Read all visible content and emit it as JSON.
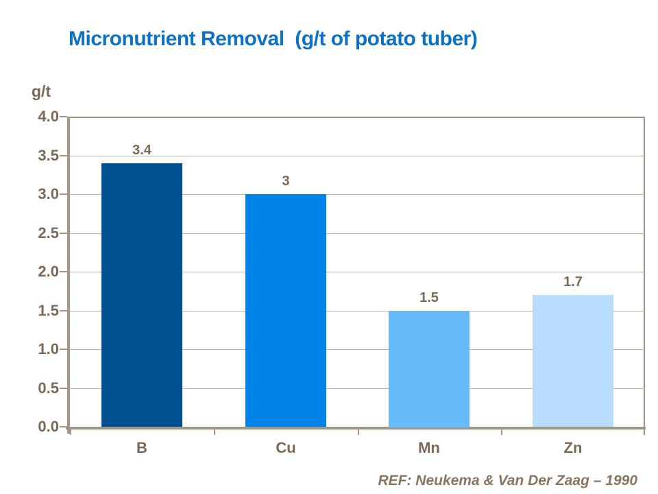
{
  "title": "Micronutrient Removal  (g/t of potato tuber)",
  "footer": {
    "reference": "REF: Neukema & Van Der Zaag – 1990"
  },
  "chart_data": {
    "type": "bar",
    "title": "Micronutrient Removal (g/t of potato tuber)",
    "unit_label": "g/t",
    "categories": [
      "B",
      "Cu",
      "Mn",
      "Zn"
    ],
    "values": [
      3.4,
      3,
      1.5,
      1.7
    ],
    "value_labels": [
      "3.4",
      "3",
      "1.5",
      "1.7"
    ],
    "bar_colors": [
      "#005091",
      "#0083E6",
      "#66BBFA",
      "#B8DCFB"
    ],
    "xlabel": "",
    "ylabel": "g/t",
    "ylim": [
      0,
      4
    ],
    "ytick_step": 0.5,
    "ytick_labels": [
      "0.0",
      "0.5",
      "1.0",
      "1.5",
      "2.0",
      "2.5",
      "3.0",
      "3.5",
      "4.0"
    ],
    "grid": true,
    "legend": "none"
  },
  "colors": {
    "title_text": "#0D72C6",
    "axis": "#A39685",
    "gridline": "#BDB2A4",
    "plot_border": "#9E9182",
    "label_text": "#7A6955",
    "reference_text": "#87755F"
  }
}
